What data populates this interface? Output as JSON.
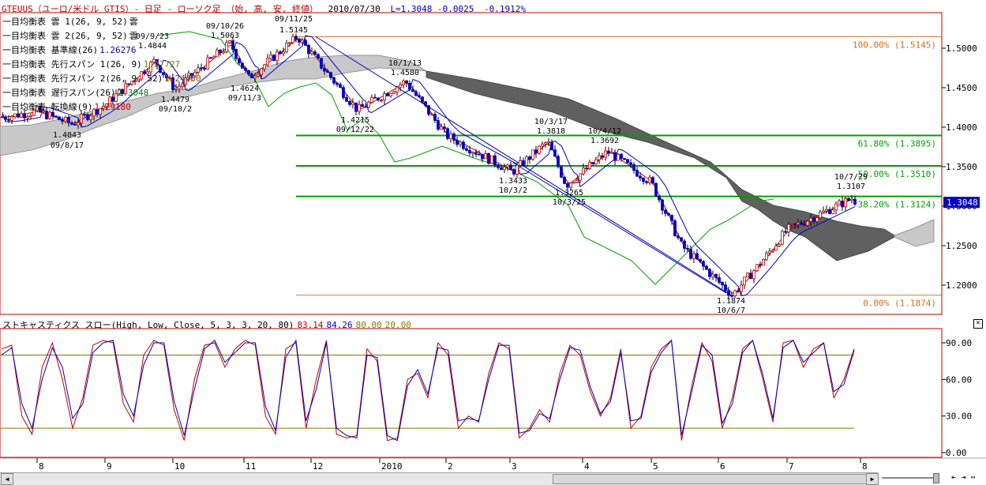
{
  "header": {
    "symbol_title": "GTEUUS（ユーロ/米ドル GTIS）- 日足 - ローソク足 （始, 高, 安, 終値）",
    "date": "2010/07/30",
    "last": "L=1.3048",
    "change": "-0.0025",
    "change_pct": "-0.1912%"
  },
  "legend": [
    {
      "name": "一目均衡表 雲 1(26, 9, 52)",
      "value": "雲"
    },
    {
      "name": "一目均衡表 雲 2(26, 9, 52)",
      "value": "雲"
    },
    {
      "name": "一目均衡表 基準線(26)",
      "value": "1.26276"
    },
    {
      "name": "一目均衡表 先行スパン 1(26, 9)",
      "value": "1.27727"
    },
    {
      "name": "一目均衡表 先行スパン 2(26, 9, 52)",
      "value": "1.24430"
    },
    {
      "name": "一目均衡表 遅行スパン(26)",
      "value": "1.3048"
    },
    {
      "name": "一目均衡表 転換線(9)",
      "value": "1.29180"
    }
  ],
  "stochastic": {
    "title": "ストキャスティクス スロー(High, Low, Close, 5, 3, 3, 20, 80)",
    "v1": "83.14",
    "v2": "84.26",
    "v3": "80.00",
    "v4": "20.00"
  },
  "close_icon": "close-icon",
  "chart_data": [
    {
      "type": "candlestick",
      "title": "GTEUUS（ユーロ/米ドル GTIS）- 日足 - ローソク足 （始, 高, 安, 終値）",
      "ylim": [
        1.17,
        1.53
      ],
      "yticks": [
        "1.5000",
        "1.4500",
        "1.4000",
        "1.3500",
        "1.3000",
        "1.2500",
        "1.2000"
      ],
      "xticks": [
        "8",
        "9",
        "10",
        "11",
        "12",
        "2010",
        "2",
        "3",
        "4",
        "5",
        "6",
        "7",
        "8"
      ],
      "last_price_tag": "1.3048",
      "close_path": [
        [
          "2009-07-15",
          1.413
        ],
        [
          "2009-08-01",
          1.42
        ],
        [
          "2009-08-17",
          1.404
        ],
        [
          "2009-09-01",
          1.428
        ],
        [
          "2009-09-23",
          1.484
        ],
        [
          "2009-10-02",
          1.448
        ],
        [
          "2009-10-26",
          1.506
        ],
        [
          "2009-11-03",
          1.462
        ],
        [
          "2009-11-25",
          1.5145
        ],
        [
          "2009-12-22",
          1.4215
        ],
        [
          "2010-01-13",
          1.458
        ],
        [
          "2010-02-01",
          1.39
        ],
        [
          "2010-03-02",
          1.3433
        ],
        [
          "2010-03-17",
          1.3818
        ],
        [
          "2010-03-25",
          1.3265
        ],
        [
          "2010-04-12",
          1.3692
        ],
        [
          "2010-05-01",
          1.33
        ],
        [
          "2010-05-15",
          1.25
        ],
        [
          "2010-06-07",
          1.1874
        ],
        [
          "2010-06-20",
          1.23
        ],
        [
          "2010-07-01",
          1.27
        ],
        [
          "2010-07-29",
          1.3107
        ],
        [
          "2010-07-30",
          1.3048
        ]
      ],
      "annotations": [
        {
          "price": "1.4043",
          "date": "09/8/17"
        },
        {
          "price": "1.4844",
          "date": "09/9/23"
        },
        {
          "price": "1.4479",
          "date": "09/10/2"
        },
        {
          "price": "1.5063",
          "date": "09/10/26"
        },
        {
          "price": "1.4624",
          "date": "09/11/3"
        },
        {
          "price": "1.5145",
          "date": "09/11/25"
        },
        {
          "price": "1.4215",
          "date": "09/12/22"
        },
        {
          "price": "1.4580",
          "date": "10/1/13"
        },
        {
          "price": "1.3433",
          "date": "10/3/2"
        },
        {
          "price": "1.3818",
          "date": "10/3/17"
        },
        {
          "price": "1.3265",
          "date": "10/3/25"
        },
        {
          "price": "1.3692",
          "date": "10/4/12"
        },
        {
          "price": "1.1874",
          "date": "10/6/7"
        },
        {
          "price": "1.3107",
          "date": "10/7/29"
        }
      ],
      "fibonacci": [
        {
          "label": "100.00% (1.5145)",
          "value": 1.5145
        },
        {
          "label": "61.80% (1.3895)",
          "value": 1.3895
        },
        {
          "label": "50.00% (1.3510)",
          "value": 1.351
        },
        {
          "label": "38.20% (1.3124)",
          "value": 1.3124
        },
        {
          "label": "0.00% (1.1874)",
          "value": 1.1874
        }
      ],
      "colors": {
        "up": "#c00000",
        "down": "#0000c0",
        "cloud": "#606060",
        "cloud_light": "#c8c8c8",
        "chikou": "#00a000",
        "fib_main": "#00a000",
        "fib_edge": "#d08040"
      }
    },
    {
      "type": "line",
      "title": "ストキャスティクス スロー(High, Low, Close, 5, 3, 3, 20, 80)",
      "ylim": [
        0,
        100
      ],
      "yticks": [
        "90.00",
        "60.00",
        "30.00",
        "0.00"
      ],
      "reference_lines": [
        80,
        20
      ],
      "series": [
        {
          "name": "%D",
          "color": "#c00000",
          "values": [
            85,
            88,
            30,
            15,
            70,
            90,
            60,
            20,
            45,
            88,
            92,
            90,
            40,
            25,
            80,
            92,
            88,
            35,
            10,
            60,
            88,
            90,
            70,
            85,
            92,
            88,
            30,
            15,
            85,
            90,
            20,
            60,
            92,
            15,
            12,
            14,
            85,
            75,
            10,
            12,
            60,
            65,
            45,
            90,
            80,
            20,
            30,
            25,
            65,
            90,
            85,
            12,
            20,
            35,
            25,
            65,
            88,
            80,
            50,
            30,
            45,
            85,
            20,
            30,
            70,
            85,
            92,
            10,
            55,
            90,
            75,
            20,
            45,
            85,
            92,
            60,
            25,
            90,
            92,
            70,
            85,
            90,
            45,
            60,
            85
          ]
        },
        {
          "name": "%K",
          "color": "#0000c0",
          "values": [
            80,
            86,
            40,
            20,
            60,
            86,
            70,
            28,
            40,
            82,
            90,
            92,
            48,
            30,
            72,
            90,
            90,
            42,
            14,
            52,
            85,
            92,
            74,
            82,
            90,
            90,
            38,
            18,
            78,
            92,
            26,
            52,
            90,
            20,
            14,
            12,
            80,
            78,
            14,
            10,
            55,
            68,
            48,
            86,
            84,
            26,
            28,
            26,
            60,
            88,
            88,
            16,
            18,
            32,
            28,
            60,
            86,
            84,
            54,
            32,
            42,
            82,
            26,
            28,
            66,
            82,
            92,
            14,
            50,
            88,
            80,
            24,
            40,
            82,
            92,
            64,
            28,
            86,
            92,
            74,
            82,
            90,
            50,
            56,
            84
          ]
        }
      ]
    }
  ]
}
